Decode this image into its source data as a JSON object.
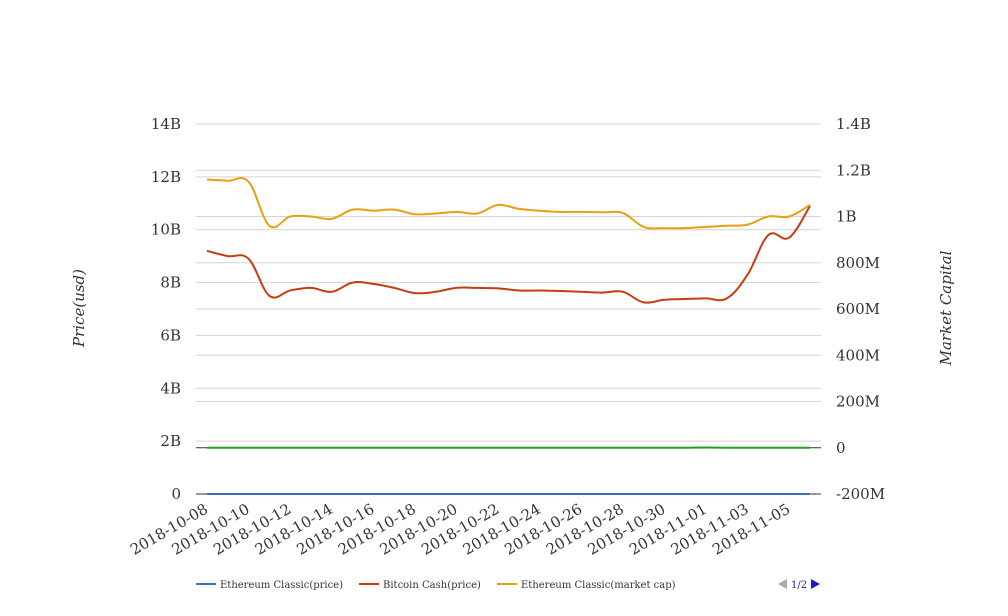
{
  "chart_data": {
    "type": "line",
    "title": "",
    "xlabel": "",
    "ylabel": "Price(usd)",
    "y2label": "Market Capital",
    "ylim": [
      0,
      14000000000
    ],
    "y2lim": [
      -200000000,
      1400000000
    ],
    "yticks": [
      "0",
      "2B",
      "4B",
      "6B",
      "8B",
      "10B",
      "12B",
      "14B"
    ],
    "y2ticks": [
      "-200M",
      "0",
      "200M",
      "400M",
      "600M",
      "800M",
      "1B",
      "1.2B",
      "1.4B"
    ],
    "grid": true,
    "legend_position": "bottom",
    "x": [
      "2018-10-08",
      "2018-10-09",
      "2018-10-10",
      "2018-10-11",
      "2018-10-12",
      "2018-10-13",
      "2018-10-14",
      "2018-10-15",
      "2018-10-16",
      "2018-10-17",
      "2018-10-18",
      "2018-10-19",
      "2018-10-20",
      "2018-10-21",
      "2018-10-22",
      "2018-10-23",
      "2018-10-24",
      "2018-10-25",
      "2018-10-26",
      "2018-10-27",
      "2018-10-28",
      "2018-10-29",
      "2018-10-30",
      "2018-10-31",
      "2018-11-01",
      "2018-11-02",
      "2018-11-03",
      "2018-11-04",
      "2018-11-05",
      "2018-11-06"
    ],
    "xticks": [
      "2018-10-08",
      "2018-10-10",
      "2018-10-12",
      "2018-10-14",
      "2018-10-16",
      "2018-10-18",
      "2018-10-20",
      "2018-10-22",
      "2018-10-24",
      "2018-10-26",
      "2018-10-28",
      "2018-10-30",
      "2018-11-01",
      "2018-11-03",
      "2018-11-05"
    ],
    "series": [
      {
        "name": "Ethereum Classic(price)",
        "axis": "left",
        "color": "#3a6fc4",
        "values": [
          9.6,
          9.5,
          9.5,
          9.2,
          9.1,
          9.1,
          9.1,
          9.2,
          9.2,
          9.2,
          9.2,
          9.2,
          9.2,
          9.2,
          9.2,
          9.2,
          9.2,
          9.2,
          9.2,
          9.2,
          9.2,
          8.9,
          8.9,
          8.9,
          9.0,
          9.0,
          9.1,
          9.1,
          9.1,
          9.2
        ]
      },
      {
        "name": "Bitcoin Cash(price)",
        "axis": "left",
        "color": "#c83c14",
        "values": [
          9200000000,
          9000000000,
          8900000000,
          7500000000,
          7700000000,
          7800000000,
          7650000000,
          8000000000,
          7950000000,
          7800000000,
          7600000000,
          7650000000,
          7800000000,
          7800000000,
          7780000000,
          7700000000,
          7700000000,
          7680000000,
          7650000000,
          7620000000,
          7650000000,
          7250000000,
          7350000000,
          7380000000,
          7400000000,
          7400000000,
          8300000000,
          9800000000,
          9700000000,
          10900000000
        ]
      },
      {
        "name": "Ethereum Classic(market cap)",
        "axis": "right",
        "color": "#e8a010",
        "values": [
          1160000000,
          1155000000,
          1150000000,
          960000000,
          1000000000,
          1000000000,
          990000000,
          1030000000,
          1025000000,
          1030000000,
          1010000000,
          1013000000,
          1020000000,
          1013000000,
          1050000000,
          1033000000,
          1025000000,
          1020000000,
          1020000000,
          1018000000,
          1015000000,
          955000000,
          950000000,
          950000000,
          955000000,
          960000000,
          965000000,
          1000000000,
          1000000000,
          1050000000
        ]
      },
      {
        "name": "",
        "axis": "right",
        "color": "#20a020",
        "values": [
          0,
          0,
          0,
          0,
          0,
          0,
          0,
          0,
          0,
          0,
          0,
          0,
          0,
          0,
          0,
          0,
          0,
          0,
          0,
          0,
          0,
          0,
          0,
          0,
          1000000,
          0,
          0,
          0,
          0,
          0
        ]
      }
    ]
  },
  "legend": {
    "items": [
      "Ethereum Classic(price)",
      "Bitcoin Cash(price)",
      "Ethereum Classic(market cap)"
    ],
    "pager": "1/2"
  }
}
